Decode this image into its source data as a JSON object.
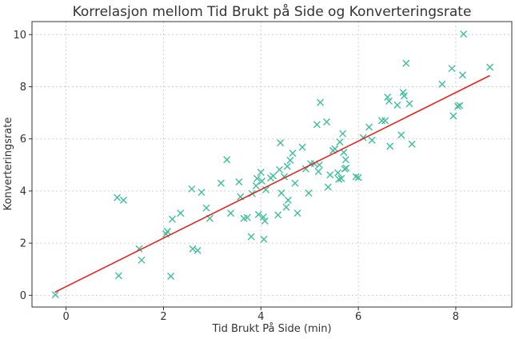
{
  "chart_data": {
    "type": "scatter",
    "title": "Korrelasjon mellom Tid Brukt på Side og Konverteringsrate",
    "xlabel": "Tid Brukt På Side (min)",
    "ylabel": "Konverteringsrate",
    "xlim": [
      -0.7,
      9.15
    ],
    "ylim": [
      -0.45,
      10.5
    ],
    "xticks": [
      0,
      2,
      4,
      6,
      8
    ],
    "yticks": [
      0,
      2,
      4,
      6,
      8,
      10
    ],
    "grid": true,
    "marker": "x",
    "colors": {
      "points": "#3dbf9a",
      "trend": "#e8231f"
    },
    "trend_line": {
      "x": [
        -0.23,
        8.7
      ],
      "y": [
        0.12,
        8.43
      ]
    },
    "points": [
      {
        "x": -0.22,
        "y": 0.02
      },
      {
        "x": 1.05,
        "y": 3.75
      },
      {
        "x": 1.08,
        "y": 0.75
      },
      {
        "x": 1.18,
        "y": 3.65
      },
      {
        "x": 1.5,
        "y": 1.78
      },
      {
        "x": 1.55,
        "y": 1.35
      },
      {
        "x": 2.05,
        "y": 2.35
      },
      {
        "x": 2.08,
        "y": 2.45
      },
      {
        "x": 2.15,
        "y": 0.73
      },
      {
        "x": 2.18,
        "y": 2.92
      },
      {
        "x": 2.35,
        "y": 3.15
      },
      {
        "x": 2.58,
        "y": 4.08
      },
      {
        "x": 2.6,
        "y": 1.78
      },
      {
        "x": 2.7,
        "y": 1.72
      },
      {
        "x": 2.78,
        "y": 3.95
      },
      {
        "x": 2.88,
        "y": 3.35
      },
      {
        "x": 2.95,
        "y": 2.95
      },
      {
        "x": 3.18,
        "y": 4.3
      },
      {
        "x": 3.3,
        "y": 5.2
      },
      {
        "x": 3.38,
        "y": 3.15
      },
      {
        "x": 3.55,
        "y": 4.35
      },
      {
        "x": 3.58,
        "y": 3.78
      },
      {
        "x": 3.65,
        "y": 2.95
      },
      {
        "x": 3.72,
        "y": 2.98
      },
      {
        "x": 3.8,
        "y": 2.25
      },
      {
        "x": 3.82,
        "y": 3.9
      },
      {
        "x": 3.9,
        "y": 4.2
      },
      {
        "x": 3.92,
        "y": 4.48
      },
      {
        "x": 3.95,
        "y": 3.1
      },
      {
        "x": 4.0,
        "y": 4.72
      },
      {
        "x": 4.02,
        "y": 4.38
      },
      {
        "x": 4.05,
        "y": 3.0
      },
      {
        "x": 4.06,
        "y": 2.15
      },
      {
        "x": 4.08,
        "y": 2.85
      },
      {
        "x": 4.1,
        "y": 4.05
      },
      {
        "x": 4.2,
        "y": 4.5
      },
      {
        "x": 4.25,
        "y": 4.58
      },
      {
        "x": 4.35,
        "y": 3.08
      },
      {
        "x": 4.38,
        "y": 4.82
      },
      {
        "x": 4.4,
        "y": 5.85
      },
      {
        "x": 4.42,
        "y": 3.92
      },
      {
        "x": 4.48,
        "y": 4.55
      },
      {
        "x": 4.52,
        "y": 3.38
      },
      {
        "x": 4.54,
        "y": 4.95
      },
      {
        "x": 4.56,
        "y": 3.65
      },
      {
        "x": 4.6,
        "y": 5.18
      },
      {
        "x": 4.65,
        "y": 5.45
      },
      {
        "x": 4.7,
        "y": 4.3
      },
      {
        "x": 4.75,
        "y": 3.15
      },
      {
        "x": 4.85,
        "y": 5.68
      },
      {
        "x": 4.92,
        "y": 4.85
      },
      {
        "x": 4.98,
        "y": 3.92
      },
      {
        "x": 5.02,
        "y": 5.05
      },
      {
        "x": 5.1,
        "y": 5.05
      },
      {
        "x": 5.15,
        "y": 6.55
      },
      {
        "x": 5.18,
        "y": 4.75
      },
      {
        "x": 5.2,
        "y": 5.0
      },
      {
        "x": 5.22,
        "y": 7.4
      },
      {
        "x": 5.35,
        "y": 6.65
      },
      {
        "x": 5.38,
        "y": 4.15
      },
      {
        "x": 5.42,
        "y": 4.62
      },
      {
        "x": 5.48,
        "y": 5.55
      },
      {
        "x": 5.52,
        "y": 5.62
      },
      {
        "x": 5.58,
        "y": 4.7
      },
      {
        "x": 5.6,
        "y": 4.45
      },
      {
        "x": 5.62,
        "y": 5.88
      },
      {
        "x": 5.65,
        "y": 4.48
      },
      {
        "x": 5.68,
        "y": 6.2
      },
      {
        "x": 5.7,
        "y": 5.48
      },
      {
        "x": 5.72,
        "y": 4.85
      },
      {
        "x": 5.74,
        "y": 5.2
      },
      {
        "x": 5.75,
        "y": 4.88
      },
      {
        "x": 5.95,
        "y": 4.55
      },
      {
        "x": 6.0,
        "y": 4.52
      },
      {
        "x": 6.1,
        "y": 6.05
      },
      {
        "x": 6.22,
        "y": 6.45
      },
      {
        "x": 6.28,
        "y": 5.95
      },
      {
        "x": 6.48,
        "y": 6.7
      },
      {
        "x": 6.55,
        "y": 6.7
      },
      {
        "x": 6.6,
        "y": 7.6
      },
      {
        "x": 6.63,
        "y": 7.45
      },
      {
        "x": 6.65,
        "y": 5.72
      },
      {
        "x": 6.8,
        "y": 7.3
      },
      {
        "x": 6.88,
        "y": 6.15
      },
      {
        "x": 6.92,
        "y": 7.78
      },
      {
        "x": 6.94,
        "y": 7.65
      },
      {
        "x": 6.98,
        "y": 8.9
      },
      {
        "x": 7.05,
        "y": 7.35
      },
      {
        "x": 7.1,
        "y": 5.8
      },
      {
        "x": 7.72,
        "y": 8.1
      },
      {
        "x": 7.92,
        "y": 8.7
      },
      {
        "x": 7.95,
        "y": 6.88
      },
      {
        "x": 8.04,
        "y": 7.25
      },
      {
        "x": 8.08,
        "y": 7.28
      },
      {
        "x": 8.14,
        "y": 8.45
      },
      {
        "x": 8.16,
        "y": 10.02
      },
      {
        "x": 8.7,
        "y": 8.75
      }
    ]
  }
}
